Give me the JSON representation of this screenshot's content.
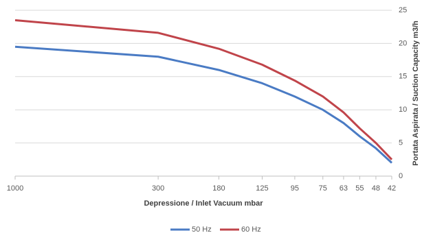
{
  "chart_data": {
    "type": "line",
    "x_label": "Depressione / Inlet Vacuum mbar",
    "y_label": "Portata Aspirata / Suction Capacity  m3/h",
    "x": [
      1000,
      300,
      180,
      125,
      95,
      75,
      63,
      55,
      48,
      42
    ],
    "xlim": [
      1000,
      42
    ],
    "xticks": [
      1000,
      300,
      180,
      125,
      95,
      75,
      63,
      55,
      48,
      42
    ],
    "x_log": true,
    "ylim": [
      0,
      25
    ],
    "yticks": [
      0,
      5,
      10,
      15,
      20,
      25
    ],
    "grid": true,
    "y_axis_side": "right",
    "legend": "bottom",
    "series": [
      {
        "name": "50 Hz",
        "color": "#4a7bc4",
        "values": [
          19.5,
          18,
          16,
          14,
          12,
          10,
          8,
          6,
          4.2,
          2
        ]
      },
      {
        "name": "60 Hz",
        "color": "#c0444a",
        "values": [
          23.5,
          21.6,
          19.2,
          16.8,
          14.4,
          12,
          9.6,
          7.2,
          5,
          2.5
        ]
      }
    ]
  }
}
